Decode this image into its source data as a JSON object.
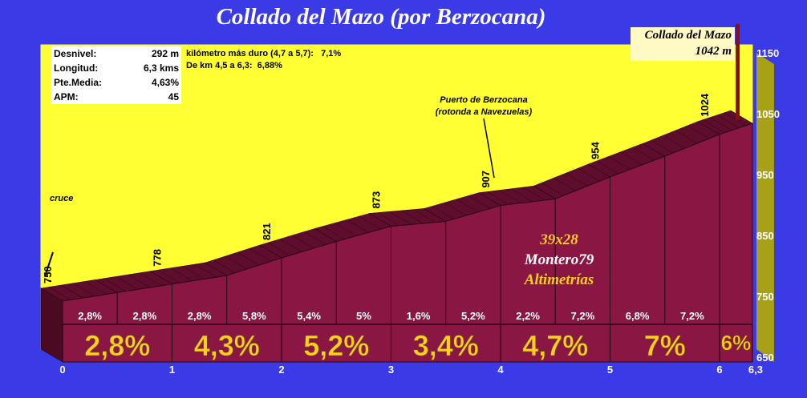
{
  "title": "Collado del Mazo (por Berzocana)",
  "stats": [
    {
      "label": "Desnivel:",
      "value": "292 m"
    },
    {
      "label": "Longitud:",
      "value": "6,3 kms"
    },
    {
      "label": "Pte.Media:",
      "value": "4,63%"
    },
    {
      "label": "APM:",
      "value": "45"
    }
  ],
  "notes": {
    "hardest": "kilómetro más duro (4,7 a 5,7):   7,1%",
    "segment": "De km 4,5 a 6,3:  6,88%"
  },
  "summit": {
    "name": "Collado del Mazo",
    "altitude": "1042 m"
  },
  "waypoints": {
    "start": "cruce",
    "puerto_line1": "Puerto de Berzocana",
    "puerto_line2": "(rotonda a Navezuelas)"
  },
  "credits": {
    "gear": "39x28",
    "author": "Montero79",
    "site": "Altimetrías"
  },
  "colors": {
    "background": "#3a3ae6",
    "plot": "#ffff33",
    "profile_front": "#8a1743",
    "profile_top": "#5e0e2c",
    "km_labels": "#ffcc22",
    "axis_text": "#ffffff"
  },
  "chart_data": {
    "type": "area",
    "title": "Collado del Mazo (por Berzocana)",
    "xlabel": "",
    "ylabel": "",
    "xlim": [
      0,
      6.3
    ],
    "ylim": [
      650,
      1150
    ],
    "x_ticks": [
      "0",
      "1",
      "2",
      "3",
      "4",
      "5",
      "6",
      "6,3"
    ],
    "y_ticks": [
      "650",
      "750",
      "850",
      "950",
      "1050",
      "1150"
    ],
    "profile": {
      "x": [
        0,
        0.5,
        1,
        1.5,
        2,
        2.5,
        3,
        3.5,
        4,
        4.5,
        5,
        5.5,
        6,
        6.3
      ],
      "y": [
        750,
        764,
        778,
        792,
        821,
        848,
        873,
        881,
        907,
        918,
        954,
        988,
        1024,
        1042
      ]
    },
    "altitude_labels": [
      {
        "x": 0,
        "label": "750"
      },
      {
        "x": 1,
        "label": "778"
      },
      {
        "x": 2,
        "label": "821"
      },
      {
        "x": 3,
        "label": "873"
      },
      {
        "x": 4,
        "label": "907"
      },
      {
        "x": 5,
        "label": "954"
      },
      {
        "x": 6,
        "label": "1024"
      }
    ],
    "half_km_gradients": [
      {
        "x": 0.25,
        "label": "2,8%"
      },
      {
        "x": 0.75,
        "label": "2,8%"
      },
      {
        "x": 1.25,
        "label": "2,8%"
      },
      {
        "x": 1.75,
        "label": "5,8%"
      },
      {
        "x": 2.25,
        "label": "5,4%"
      },
      {
        "x": 2.75,
        "label": "5%"
      },
      {
        "x": 3.25,
        "label": "1,6%"
      },
      {
        "x": 3.75,
        "label": "5,2%"
      },
      {
        "x": 4.25,
        "label": "2,2%"
      },
      {
        "x": 4.75,
        "label": "7,2%"
      },
      {
        "x": 5.25,
        "label": "6,8%"
      },
      {
        "x": 5.75,
        "label": "7,2%"
      }
    ],
    "km_gradients": [
      {
        "x": 0.5,
        "label": "2,8%"
      },
      {
        "x": 1.5,
        "label": "4,3%"
      },
      {
        "x": 2.5,
        "label": "5,2%"
      },
      {
        "x": 3.5,
        "label": "3,4%"
      },
      {
        "x": 4.5,
        "label": "4,7%"
      },
      {
        "x": 5.5,
        "label": "7%"
      },
      {
        "x": 6.15,
        "label": "6%"
      }
    ]
  }
}
